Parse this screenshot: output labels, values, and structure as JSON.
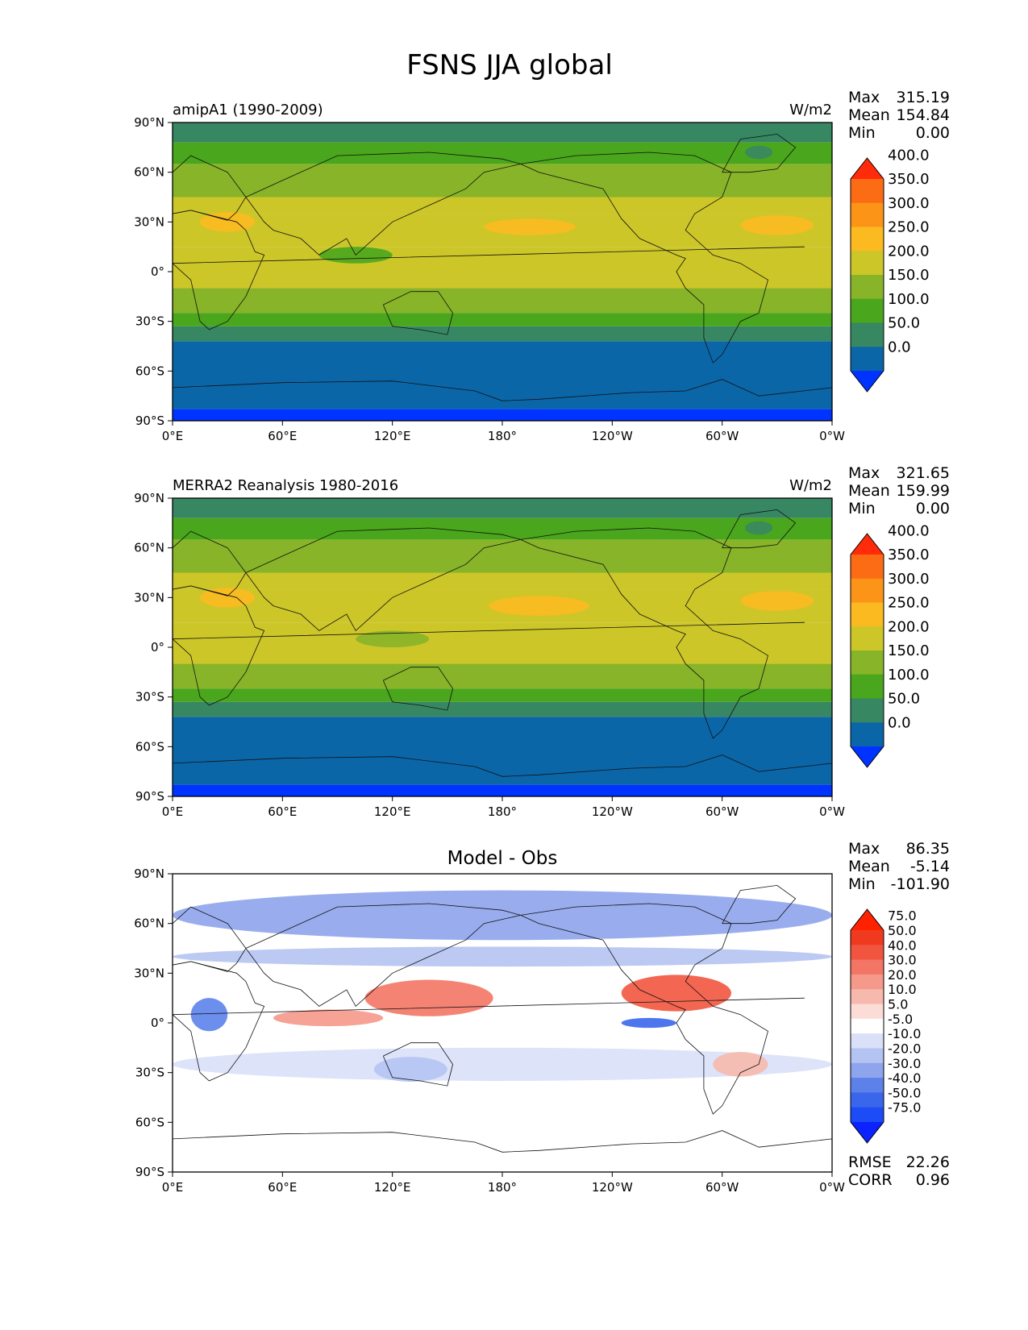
{
  "figure": {
    "title": "FSNS JJA global"
  },
  "chart_data": [
    {
      "type": "heatmap",
      "left_title": "amipA1 (1990-2009)",
      "center_title": "",
      "units": "W/m2",
      "stats": [
        {
          "label": "Max",
          "value": "315.19"
        },
        {
          "label": "Mean",
          "value": "154.84"
        },
        {
          "label": "Min",
          "value": "0.00"
        }
      ],
      "colorbar": {
        "levels": [
          "0.0",
          "50.0",
          "100.0",
          "150.0",
          "200.0",
          "250.0",
          "300.0",
          "350.0",
          "400.0"
        ],
        "colors": [
          "#0033ff",
          "#0b66a8",
          "#388763",
          "#4aa61c",
          "#87b428",
          "#ccc629",
          "#fbba20",
          "#fb9417",
          "#fb6c14",
          "#ff2b0a"
        ]
      },
      "x_ticks": [
        "0°E",
        "60°E",
        "120°E",
        "180°",
        "120°W",
        "60°W",
        "0°W"
      ],
      "y_ticks": [
        "90°N",
        "60°N",
        "30°N",
        "0°",
        "30°S",
        "60°S",
        "90°S"
      ],
      "xlim": [
        0,
        360
      ],
      "ylim": [
        -90,
        90
      ],
      "zonal_bands": [
        {
          "lat": [
            78,
            90
          ],
          "level": 2
        },
        {
          "lat": [
            65,
            78
          ],
          "level": 3
        },
        {
          "lat": [
            45,
            65
          ],
          "level": 4
        },
        {
          "lat": [
            35,
            45
          ],
          "level": 5
        },
        {
          "lat": [
            15,
            35
          ],
          "level": 5
        },
        {
          "lat": [
            -10,
            15
          ],
          "level": 5
        },
        {
          "lat": [
            -25,
            -10
          ],
          "level": 4
        },
        {
          "lat": [
            -33,
            -25
          ],
          "level": 3
        },
        {
          "lat": [
            -42,
            -33
          ],
          "level": 2
        },
        {
          "lat": [
            -83,
            -42
          ],
          "level": 1
        },
        {
          "lat": [
            -90,
            -83
          ],
          "level": 0
        }
      ],
      "patches": [
        {
          "lon": 30,
          "lat": 30,
          "w": 30,
          "h": 12,
          "level": 6
        },
        {
          "lon": 195,
          "lat": 27,
          "w": 50,
          "h": 10,
          "level": 6
        },
        {
          "lon": 330,
          "lat": 28,
          "w": 40,
          "h": 12,
          "level": 6
        },
        {
          "lon": 320,
          "lat": 72,
          "w": 15,
          "h": 8,
          "level": 2
        },
        {
          "lon": 100,
          "lat": 10,
          "w": 40,
          "h": 10,
          "level": 3
        }
      ]
    },
    {
      "type": "heatmap",
      "left_title": "MERRA2 Reanalysis 1980-2016",
      "center_title": "",
      "units": "W/m2",
      "stats": [
        {
          "label": "Max",
          "value": "321.65"
        },
        {
          "label": "Mean",
          "value": "159.99"
        },
        {
          "label": "Min",
          "value": "0.00"
        }
      ],
      "colorbar": {
        "levels": [
          "0.0",
          "50.0",
          "100.0",
          "150.0",
          "200.0",
          "250.0",
          "300.0",
          "350.0",
          "400.0"
        ],
        "colors": [
          "#0033ff",
          "#0b66a8",
          "#388763",
          "#4aa61c",
          "#87b428",
          "#ccc629",
          "#fbba20",
          "#fb9417",
          "#fb6c14",
          "#ff2b0a"
        ]
      },
      "x_ticks": [
        "0°E",
        "60°E",
        "120°E",
        "180°",
        "120°W",
        "60°W",
        "0°W"
      ],
      "y_ticks": [
        "90°N",
        "60°N",
        "30°N",
        "0°",
        "30°S",
        "60°S",
        "90°S"
      ],
      "xlim": [
        0,
        360
      ],
      "ylim": [
        -90,
        90
      ],
      "zonal_bands": [
        {
          "lat": [
            78,
            90
          ],
          "level": 2
        },
        {
          "lat": [
            65,
            78
          ],
          "level": 3
        },
        {
          "lat": [
            45,
            65
          ],
          "level": 4
        },
        {
          "lat": [
            35,
            45
          ],
          "level": 5
        },
        {
          "lat": [
            15,
            35
          ],
          "level": 5
        },
        {
          "lat": [
            -10,
            15
          ],
          "level": 5
        },
        {
          "lat": [
            -25,
            -10
          ],
          "level": 4
        },
        {
          "lat": [
            -33,
            -25
          ],
          "level": 3
        },
        {
          "lat": [
            -42,
            -33
          ],
          "level": 2
        },
        {
          "lat": [
            -83,
            -42
          ],
          "level": 1
        },
        {
          "lat": [
            -90,
            -83
          ],
          "level": 0
        }
      ],
      "patches": [
        {
          "lon": 30,
          "lat": 30,
          "w": 30,
          "h": 12,
          "level": 6
        },
        {
          "lon": 200,
          "lat": 25,
          "w": 55,
          "h": 12,
          "level": 6
        },
        {
          "lon": 330,
          "lat": 28,
          "w": 40,
          "h": 12,
          "level": 6
        },
        {
          "lon": 320,
          "lat": 72,
          "w": 15,
          "h": 8,
          "level": 2
        },
        {
          "lon": 120,
          "lat": 5,
          "w": 40,
          "h": 10,
          "level": 4
        }
      ]
    },
    {
      "type": "heatmap",
      "left_title": "",
      "center_title": "Model - Obs",
      "units": "",
      "stats": [
        {
          "label": "Max",
          "value": "86.35"
        },
        {
          "label": "Mean",
          "value": "-5.14"
        },
        {
          "label": "Min",
          "value": "-101.90"
        }
      ],
      "colorbar": {
        "levels": [
          "-75.0",
          "-50.0",
          "-40.0",
          "-30.0",
          "-20.0",
          "-10.0",
          "-5.0",
          "5.0",
          "10.0",
          "20.0",
          "30.0",
          "40.0",
          "50.0",
          "75.0"
        ],
        "colors": [
          "#0c22ff",
          "#1b4cf5",
          "#3a66ec",
          "#5c82ea",
          "#8ea4ec",
          "#b4c3f2",
          "#d9e0f8",
          "#ffffff",
          "#fbdcd6",
          "#f7b9ad",
          "#f5998a",
          "#f37565",
          "#f2553f",
          "#ef3a20",
          "#ff2200"
        ]
      },
      "x_ticks": [
        "0°E",
        "60°E",
        "120°E",
        "180°",
        "120°W",
        "60°W",
        "0°W"
      ],
      "y_ticks": [
        "90°N",
        "60°N",
        "30°N",
        "0°",
        "30°S",
        "60°S",
        "90°S"
      ],
      "xlim": [
        0,
        360
      ],
      "ylim": [
        -90,
        90
      ],
      "zonal_bands": [
        {
          "lat": [
            -90,
            90
          ],
          "level": 7
        }
      ],
      "patches": [
        {
          "lon": 180,
          "lat": 65,
          "w": 360,
          "h": 30,
          "level": 4
        },
        {
          "lon": 180,
          "lat": 40,
          "w": 360,
          "h": 12,
          "level": 5
        },
        {
          "lon": 180,
          "lat": -25,
          "w": 360,
          "h": 20,
          "level": 6
        },
        {
          "lon": 140,
          "lat": 15,
          "w": 70,
          "h": 22,
          "level": 11
        },
        {
          "lon": 85,
          "lat": 3,
          "w": 60,
          "h": 10,
          "level": 10
        },
        {
          "lon": 275,
          "lat": 18,
          "w": 60,
          "h": 22,
          "level": 12
        },
        {
          "lon": 310,
          "lat": -25,
          "w": 30,
          "h": 15,
          "level": 9
        },
        {
          "lon": 130,
          "lat": -28,
          "w": 40,
          "h": 15,
          "level": 5
        },
        {
          "lon": 20,
          "lat": 5,
          "w": 20,
          "h": 20,
          "level": 3
        },
        {
          "lon": 260,
          "lat": 0,
          "w": 30,
          "h": 6,
          "level": 2
        }
      ],
      "metrics": [
        {
          "label": "RMSE",
          "value": "22.26"
        },
        {
          "label": "CORR",
          "value": "0.96"
        }
      ]
    }
  ]
}
